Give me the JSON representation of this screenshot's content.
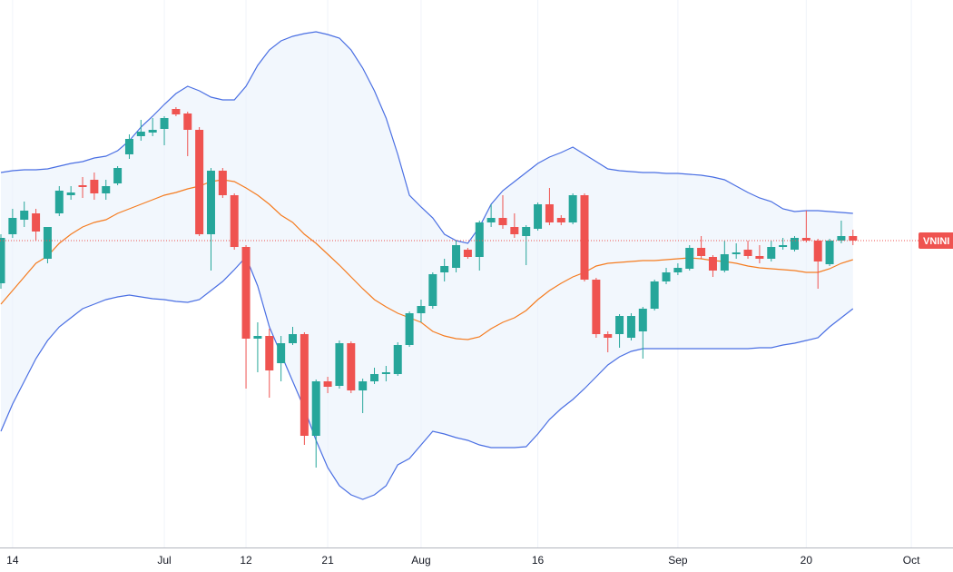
{
  "chart_data": {
    "type": "candlestick",
    "ylim": [
      0,
      603
    ],
    "up_color": "#26a69a",
    "down_color": "#ef5350",
    "grid": true,
    "price_label": "VNINI",
    "categories": [
      null,
      "14",
      null,
      null,
      null,
      null,
      null,
      null,
      null,
      null,
      null,
      null,
      null,
      null,
      "Jul",
      null,
      null,
      null,
      null,
      null,
      null,
      "12",
      null,
      null,
      null,
      null,
      null,
      null,
      "21",
      null,
      null,
      null,
      null,
      null,
      null,
      null,
      "Aug",
      null,
      null,
      null,
      null,
      null,
      null,
      null,
      null,
      null,
      "16",
      null,
      null,
      null,
      null,
      null,
      null,
      null,
      null,
      null,
      null,
      null,
      "Sep",
      null,
      null,
      null,
      null,
      null,
      null,
      null,
      null,
      null,
      null,
      "20",
      null,
      null,
      null,
      null,
      null,
      null,
      null,
      null,
      "Oct"
    ],
    "open": [
      291,
      345,
      361,
      368,
      318,
      368,
      388,
      399,
      405,
      390,
      401,
      433,
      453,
      457,
      461,
      483,
      478,
      460,
      345,
      415,
      388,
      331,
      230,
      233,
      203,
      225,
      235,
      123,
      183,
      178,
      225,
      173,
      183,
      191,
      191,
      223,
      258,
      266,
      303,
      308,
      328,
      320,
      358,
      363,
      353,
      343,
      351,
      378,
      363,
      358,
      388,
      295,
      235,
      235,
      231,
      238,
      263,
      293,
      303,
      307,
      330,
      320,
      305,
      323,
      328,
      321,
      318,
      331,
      328,
      341,
      338,
      312,
      338,
      343,
      null,
      null,
      null,
      null,
      null
    ],
    "high": [
      345,
      373,
      381,
      373,
      353,
      398,
      398,
      408,
      413,
      405,
      420,
      455,
      471,
      473,
      475,
      485,
      480,
      463,
      418,
      418,
      390,
      333,
      248,
      241,
      233,
      243,
      237,
      185,
      188,
      228,
      227,
      186,
      198,
      200,
      226,
      260,
      273,
      303,
      318,
      338,
      330,
      360,
      378,
      388,
      368,
      355,
      380,
      396,
      366,
      390,
      390,
      297,
      238,
      257,
      258,
      265,
      295,
      308,
      313,
      333,
      343,
      322,
      338,
      335,
      338,
      333,
      338,
      341,
      343,
      371,
      340,
      340,
      360,
      350,
      null,
      null,
      null,
      null,
      null
    ],
    "low": [
      285,
      341,
      353,
      338,
      313,
      365,
      383,
      385,
      383,
      383,
      399,
      428,
      448,
      453,
      443,
      475,
      431,
      343,
      305,
      385,
      328,
      175,
      193,
      165,
      183,
      223,
      113,
      88,
      170,
      175,
      170,
      148,
      180,
      183,
      189,
      221,
      248,
      263,
      293,
      303,
      318,
      305,
      353,
      351,
      341,
      311,
      349,
      355,
      355,
      356,
      293,
      231,
      215,
      220,
      228,
      208,
      261,
      290,
      300,
      305,
      318,
      298,
      303,
      318,
      318,
      313,
      315,
      328,
      326,
      336,
      285,
      310,
      335,
      333,
      null,
      null,
      null,
      null,
      null
    ],
    "close": [
      341,
      363,
      371,
      348,
      353,
      393,
      391,
      397,
      390,
      398,
      418,
      450,
      458,
      460,
      473,
      477,
      460,
      345,
      415,
      388,
      331,
      230,
      233,
      195,
      225,
      235,
      123,
      183,
      177,
      225,
      173,
      183,
      191,
      193,
      223,
      258,
      266,
      301,
      310,
      333,
      320,
      358,
      363,
      355,
      345,
      353,
      378,
      358,
      358,
      388,
      295,
      235,
      231,
      255,
      255,
      263,
      293,
      303,
      308,
      330,
      321,
      305,
      323,
      325,
      321,
      318,
      331,
      333,
      341,
      338,
      315,
      338,
      343,
      338,
      null,
      null,
      null,
      null,
      null
    ],
    "bollinger": {
      "band_color": "#4a6fe3",
      "middle_color": "#f57c20",
      "fill": "#e9f1fb",
      "upper": [
        413,
        415,
        416,
        416,
        417,
        420,
        423,
        425,
        429,
        431,
        437,
        448,
        463,
        475,
        488,
        500,
        508,
        503,
        496,
        493,
        493,
        508,
        531,
        548,
        558,
        563,
        566,
        568,
        565,
        561,
        548,
        528,
        503,
        473,
        433,
        388,
        375,
        363,
        345,
        338,
        335,
        353,
        378,
        393,
        403,
        413,
        423,
        430,
        435,
        441,
        433,
        425,
        417,
        415,
        414,
        413,
        413,
        412,
        412,
        411,
        410,
        408,
        405,
        398,
        391,
        385,
        381,
        373,
        370,
        371,
        371,
        370,
        369,
        368,
        null,
        null,
        null,
        null,
        null
      ],
      "middle": [
        268,
        283,
        298,
        313,
        321,
        335,
        345,
        353,
        358,
        361,
        368,
        373,
        378,
        383,
        388,
        391,
        395,
        398,
        403,
        405,
        403,
        396,
        388,
        378,
        366,
        358,
        345,
        335,
        323,
        311,
        298,
        285,
        273,
        265,
        258,
        253,
        248,
        238,
        233,
        230,
        229,
        232,
        241,
        248,
        253,
        261,
        273,
        283,
        291,
        298,
        303,
        310,
        313,
        314,
        315,
        316,
        316,
        317,
        318,
        319,
        318,
        316,
        315,
        313,
        310,
        308,
        307,
        306,
        305,
        303,
        303,
        307,
        313,
        317,
        null,
        null,
        null,
        null,
        null
      ],
      "lower": [
        128,
        158,
        183,
        208,
        228,
        243,
        253,
        263,
        268,
        273,
        276,
        278,
        276,
        274,
        273,
        271,
        270,
        273,
        283,
        293,
        306,
        320,
        288,
        243,
        213,
        183,
        153,
        118,
        88,
        68,
        58,
        53,
        58,
        68,
        91,
        98,
        113,
        128,
        125,
        121,
        118,
        113,
        110,
        110,
        110,
        111,
        125,
        141,
        153,
        163,
        175,
        188,
        201,
        210,
        216,
        219,
        219,
        219,
        219,
        219,
        219,
        219,
        219,
        219,
        219,
        220,
        220,
        223,
        225,
        228,
        231,
        243,
        253,
        263,
        null,
        null,
        null,
        null,
        null
      ]
    }
  }
}
